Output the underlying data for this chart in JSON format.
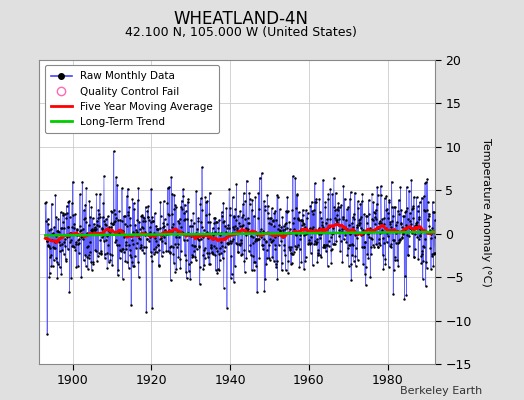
{
  "title": "WHEATLAND-4N",
  "subtitle": "42.100 N, 105.000 W (United States)",
  "ylabel_right": "Temperature Anomaly (°C)",
  "watermark": "Berkeley Earth",
  "start_year": 1893,
  "end_year": 1993,
  "ylim": [
    -15,
    20
  ],
  "yticks": [
    -15,
    -10,
    -5,
    0,
    5,
    10,
    15,
    20
  ],
  "xticks": [
    1900,
    1920,
    1940,
    1960,
    1980
  ],
  "background_color": "#e0e0e0",
  "plot_bg_color": "#ffffff",
  "seed": 42,
  "long_term_trend_slope": 0.004,
  "long_term_trend_intercept": -0.2,
  "moving_avg_window": 60,
  "raw_std": 2.5,
  "raw_seasonal_amp": 0.0
}
